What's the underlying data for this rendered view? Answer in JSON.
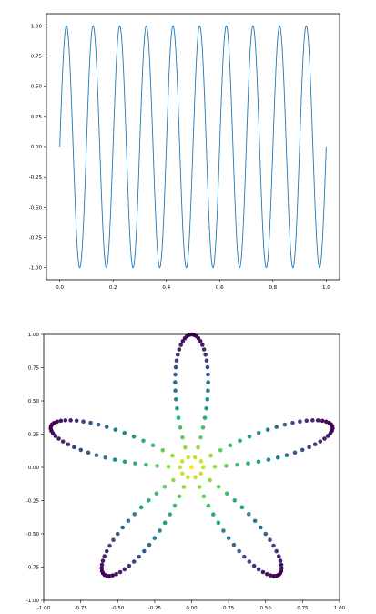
{
  "chart_data": [
    {
      "type": "line",
      "title": "",
      "xlabel": "",
      "ylabel": "",
      "function": "sin(2*pi*10*x)",
      "x_range": [
        0,
        1
      ],
      "sample_count": 1000,
      "xlim": [
        -0.05,
        1.05
      ],
      "ylim": [
        -1.1,
        1.1
      ],
      "xticks": [
        0.0,
        0.2,
        0.4,
        0.6,
        0.8,
        1.0
      ],
      "xtick_labels": [
        "0.0",
        "0.2",
        "0.4",
        "0.6",
        "0.8",
        "1.0"
      ],
      "yticks": [
        -1.0,
        -0.75,
        -0.5,
        -0.25,
        0.0,
        0.25,
        0.5,
        0.75,
        1.0
      ],
      "ytick_labels": [
        "-1.00",
        "-0.75",
        "-0.50",
        "-0.25",
        "0.00",
        "0.25",
        "0.50",
        "0.75",
        "1.00"
      ],
      "color": "#1f77b4",
      "grid": false
    },
    {
      "type": "scatter",
      "title": "",
      "xlabel": "",
      "ylabel": "",
      "function": "r = sin(5*theta)*... rose curve: x = cos(5t)*cos(t), y = cos(5t)*sin(t)",
      "petals": 5,
      "point_count": 200,
      "color_by": "radius",
      "colormap": "viridis (center yellow, tips purple)",
      "xlim": [
        -1.0,
        1.0
      ],
      "ylim": [
        -1.0,
        1.0
      ],
      "xticks": [
        -1.0,
        -0.75,
        -0.5,
        -0.25,
        0.0,
        0.25,
        0.5,
        0.75,
        1.0
      ],
      "xtick_labels": [
        "-1.00",
        "-0.75",
        "-0.50",
        "-0.25",
        "0.00",
        "0.25",
        "0.50",
        "0.75",
        "1.00"
      ],
      "yticks": [
        -1.0,
        -0.75,
        -0.5,
        -0.25,
        0.0,
        0.25,
        0.5,
        0.75,
        1.0
      ],
      "ytick_labels": [
        "-1.00",
        "-0.75",
        "-0.50",
        "-0.25",
        "0.00",
        "0.25",
        "0.50",
        "0.75",
        "1.00"
      ],
      "grid": false
    }
  ]
}
